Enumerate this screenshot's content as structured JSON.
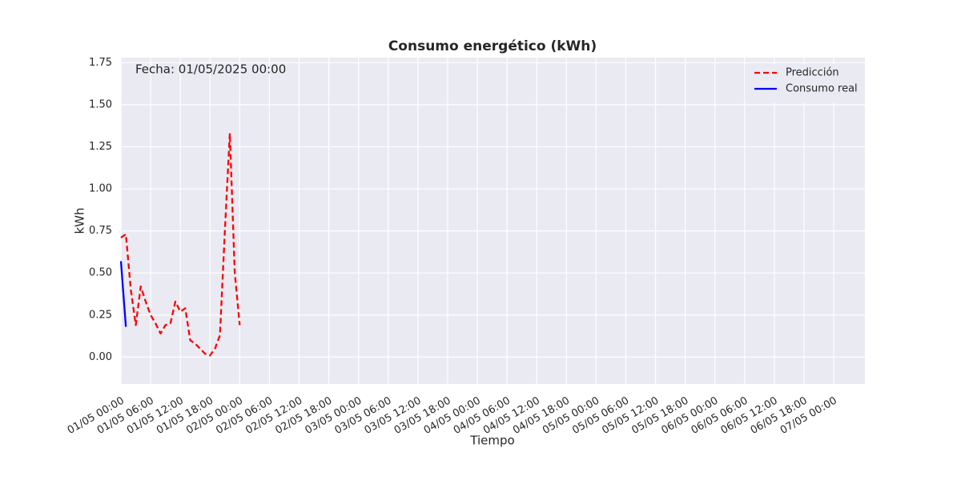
{
  "chart_data": {
    "type": "line",
    "title": "Consumo energético (kWh)",
    "x_label": "Tiempo",
    "y_label": "kWh",
    "annotation": "Fecha: 01/05/2025 00:00",
    "xlim": [
      "01/05 00:00",
      "07/05 06:18"
    ],
    "xticks": [
      "01/05 00:00",
      "01/05 06:00",
      "01/05 12:00",
      "01/05 18:00",
      "02/05 00:00",
      "02/05 06:00",
      "02/05 12:00",
      "02/05 18:00",
      "03/05 00:00",
      "03/05 06:00",
      "03/05 12:00",
      "03/05 18:00",
      "04/05 00:00",
      "04/05 06:00",
      "04/05 12:00",
      "04/05 18:00",
      "05/05 00:00",
      "05/05 06:00",
      "05/05 12:00",
      "05/05 18:00",
      "06/05 00:00",
      "06/05 06:00",
      "06/05 12:00",
      "06/05 18:00",
      "07/05 00:00"
    ],
    "ylim": [
      -0.16,
      1.78
    ],
    "yticks": [
      {
        "value": 0,
        "label": "0.00"
      },
      {
        "value": 0.25,
        "label": "0.25"
      },
      {
        "value": 0.5,
        "label": "0.50"
      },
      {
        "value": 0.75,
        "label": "0.75"
      },
      {
        "value": 1,
        "label": "1.00"
      },
      {
        "value": 1.25,
        "label": "1.25"
      },
      {
        "value": 1.5,
        "label": "1.50"
      },
      {
        "value": 1.75,
        "label": "1.75"
      }
    ],
    "grid": true,
    "legend": "upper right",
    "series": [
      {
        "name": "Predicción",
        "color": "#ff0000",
        "dashed": true,
        "x": [
          "01/05 00:00",
          "01/05 01:00",
          "01/05 02:00",
          "01/05 03:00",
          "01/05 04:00",
          "01/05 05:00",
          "01/05 06:00",
          "01/05 07:00",
          "01/05 08:00",
          "01/05 09:00",
          "01/05 10:00",
          "01/05 11:00",
          "01/05 12:00",
          "01/05 13:00",
          "01/05 14:00",
          "01/05 15:00",
          "01/05 16:00",
          "01/05 17:00",
          "01/05 18:00",
          "01/05 19:00",
          "01/05 20:00",
          "01/05 21:00",
          "01/05 22:00",
          "01/05 23:00",
          "02/05 00:00"
        ],
        "values": [
          0.71,
          0.73,
          0.4,
          0.19,
          0.42,
          0.33,
          0.25,
          0.2,
          0.14,
          0.19,
          0.2,
          0.33,
          0.27,
          0.29,
          0.1,
          0.08,
          0.05,
          0.02,
          0.01,
          0.05,
          0.13,
          0.75,
          1.33,
          0.5,
          0.19
        ]
      },
      {
        "name": "Consumo real",
        "color": "#0000ff",
        "dashed": false,
        "x": [
          "01/05 00:00",
          "01/05 01:00"
        ],
        "values": [
          0.57,
          0.18
        ]
      }
    ]
  }
}
